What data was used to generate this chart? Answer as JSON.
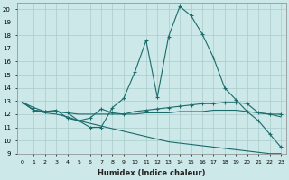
{
  "xlabel": "Humidex (Indice chaleur)",
  "bg_color": "#cce8e8",
  "line_color": "#1a6b6b",
  "grid_color": "#aacccc",
  "xlim": [
    -0.5,
    23.5
  ],
  "ylim": [
    9,
    20.5
  ],
  "xticks": [
    0,
    1,
    2,
    3,
    4,
    5,
    6,
    7,
    8,
    9,
    10,
    11,
    12,
    13,
    14,
    15,
    16,
    17,
    18,
    19,
    20,
    21,
    22,
    23
  ],
  "yticks": [
    9,
    10,
    11,
    12,
    13,
    14,
    15,
    16,
    17,
    18,
    19,
    20
  ],
  "line1_x": [
    0,
    1,
    2,
    3,
    4,
    5,
    6,
    7,
    8,
    9,
    10,
    11,
    12,
    13,
    14,
    15,
    16,
    17,
    18,
    19,
    20,
    21,
    22,
    23
  ],
  "line1_y": [
    12.9,
    12.5,
    12.2,
    12.3,
    11.7,
    11.5,
    11.0,
    11.0,
    12.5,
    13.2,
    15.2,
    17.6,
    13.3,
    17.9,
    20.2,
    19.5,
    18.1,
    16.3,
    14.0,
    13.1,
    12.2,
    11.5,
    10.5,
    9.5
  ],
  "line2_x": [
    0,
    1,
    2,
    3,
    4,
    5,
    6,
    7,
    8,
    9,
    10,
    11,
    12,
    13,
    14,
    15,
    16,
    17,
    18,
    19,
    20,
    21,
    22,
    23
  ],
  "line2_y": [
    12.9,
    12.3,
    12.2,
    12.2,
    12.1,
    11.5,
    11.7,
    12.4,
    12.1,
    12.0,
    12.2,
    12.3,
    12.4,
    12.5,
    12.6,
    12.7,
    12.8,
    12.8,
    12.9,
    12.9,
    12.8,
    12.1,
    12.0,
    12.0
  ],
  "line3_x": [
    0,
    1,
    2,
    3,
    4,
    5,
    6,
    7,
    8,
    9,
    10,
    11,
    12,
    13,
    14,
    15,
    16,
    17,
    18,
    19,
    20,
    21,
    22,
    23
  ],
  "line3_y": [
    12.9,
    12.3,
    12.2,
    12.2,
    12.1,
    12.0,
    12.0,
    12.0,
    12.0,
    12.0,
    12.0,
    12.1,
    12.1,
    12.1,
    12.2,
    12.2,
    12.2,
    12.3,
    12.3,
    12.3,
    12.2,
    12.1,
    12.0,
    11.8
  ],
  "line4_x": [
    0,
    1,
    2,
    3,
    4,
    5,
    6,
    7,
    8,
    9,
    10,
    11,
    12,
    13,
    14,
    15,
    16,
    17,
    18,
    19,
    20,
    21,
    22,
    23
  ],
  "line4_y": [
    12.9,
    12.3,
    12.1,
    12.0,
    11.8,
    11.5,
    11.3,
    11.1,
    10.9,
    10.7,
    10.5,
    10.3,
    10.1,
    9.9,
    9.8,
    9.7,
    9.6,
    9.5,
    9.4,
    9.3,
    9.2,
    9.1,
    9.0,
    9.0
  ],
  "marker1_x": [
    0,
    1,
    2,
    3,
    4,
    5,
    6,
    7,
    8,
    9,
    10,
    11,
    12,
    13,
    14,
    15,
    16,
    17,
    18,
    19,
    20,
    21,
    22,
    23
  ],
  "marker2_x": [
    0,
    2,
    8,
    13,
    20,
    21,
    22,
    23
  ],
  "marker3_x": [
    0,
    23
  ],
  "marker4_x": [
    0,
    23
  ]
}
